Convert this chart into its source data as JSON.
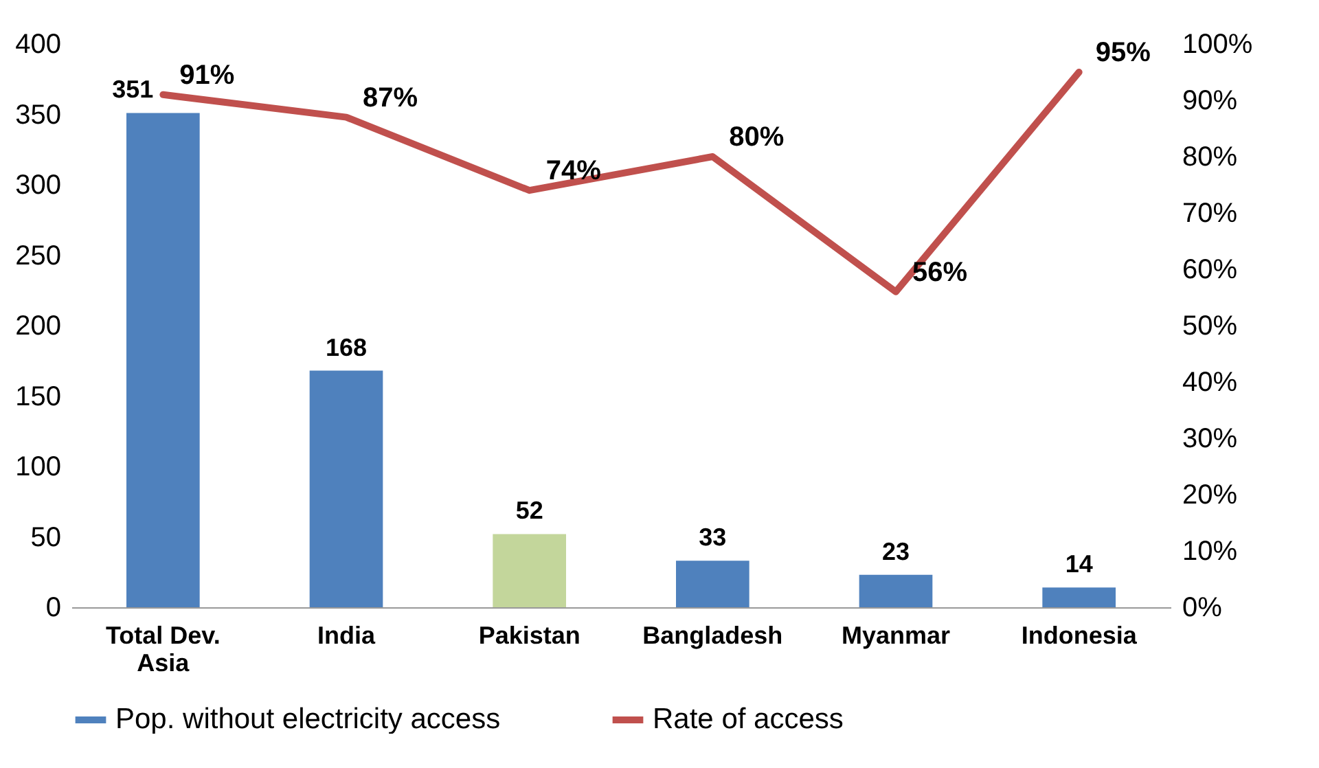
{
  "chart_data": {
    "type": "bar",
    "categories": [
      "Total Dev. Asia",
      "India",
      "Pakistan",
      "Bangladesh",
      "Myanmar",
      "Indonesia"
    ],
    "series": [
      {
        "name": "Pop. without electricity access",
        "color": "#4f81bd",
        "colors": [
          "#4f81bd",
          "#4f81bd",
          "#c3d69b",
          "#4f81bd",
          "#4f81bd",
          "#4f81bd"
        ],
        "values": [
          351,
          168,
          52,
          33,
          23,
          14
        ],
        "value_labels": [
          "351",
          "168",
          "52",
          "33",
          "23",
          "14"
        ]
      },
      {
        "name": "Rate of access",
        "type": "line",
        "axis": "y2",
        "color": "#c0504d",
        "values": [
          91,
          87,
          74,
          80,
          56,
          95
        ],
        "value_labels": [
          "91%",
          "87%",
          "74%",
          "80%",
          "56%",
          "95%"
        ]
      }
    ],
    "ylim": [
      0,
      400
    ],
    "yticks": [
      0,
      50,
      100,
      150,
      200,
      250,
      300,
      350,
      400
    ],
    "y2lim": [
      0,
      100
    ],
    "y2ticks": [
      {
        "value": 0,
        "label": "0%"
      },
      {
        "value": 10,
        "label": "10%"
      },
      {
        "value": 20,
        "label": "20%"
      },
      {
        "value": 30,
        "label": "30%"
      },
      {
        "value": 40,
        "label": "40%"
      },
      {
        "value": 50,
        "label": "50%"
      },
      {
        "value": 60,
        "label": "60%"
      },
      {
        "value": 70,
        "label": "70%"
      },
      {
        "value": 80,
        "label": "80%"
      },
      {
        "value": 90,
        "label": "90%"
      },
      {
        "value": 100,
        "label": "100%"
      }
    ],
    "grid": false,
    "legend": "bottom",
    "line_style": "solid"
  }
}
